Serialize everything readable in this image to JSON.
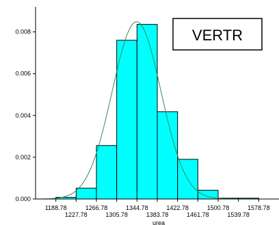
{
  "chart_data": {
    "type": "bar",
    "subtype": "histogram-with-density-curve",
    "title": "",
    "legend_box_label": "VERTR",
    "xlabel": "urea",
    "ylabel": "",
    "bin_edges": [
      1149.78,
      1188.78,
      1227.78,
      1266.78,
      1305.78,
      1344.78,
      1383.78,
      1422.78,
      1461.78,
      1500.78,
      1539.78,
      1578.78,
      1617.78
    ],
    "values": [
      0.0,
      8e-05,
      0.00052,
      0.00256,
      0.0076,
      0.00836,
      0.00418,
      0.0019,
      0.00042,
      4e-05,
      4e-05,
      0.0
    ],
    "x_ticks": [
      "1188.78",
      "1227.78",
      "1266.78",
      "1305.78",
      "1344.78",
      "1383.78",
      "1422.78",
      "1461.78",
      "1500.78",
      "1539.78",
      "1578.78"
    ],
    "y_ticks": [
      "0.000",
      "0.002",
      "0.004",
      "0.006",
      "0.008"
    ],
    "y_tick_values": [
      0,
      0.002,
      0.004,
      0.006,
      0.008
    ],
    "xlim": [
      1149.78,
      1617.78
    ],
    "ylim": [
      0,
      0.0092
    ],
    "density_curve": {
      "type": "normal",
      "mean": 1344.0,
      "sd": 47.0
    },
    "colors": {
      "bar_fill": "#00ffff",
      "bar_stroke": "#000000",
      "curve": "#2e8b57",
      "axis": "#000000"
    },
    "grid": false
  }
}
